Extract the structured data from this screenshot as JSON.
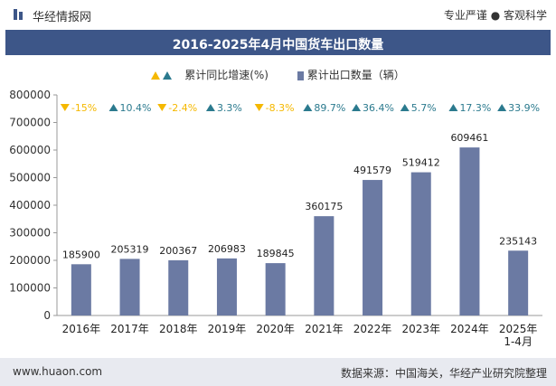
{
  "header": {
    "brand": "华经情报网",
    "tagline": "专业严谨 ● 客观科学"
  },
  "chart_data": {
    "type": "bar",
    "title": "2016-2025年4月中国货车出口数量",
    "legend": {
      "growth_label": "累计同比增速(%)",
      "volume_label": "累计出口数量（辆）"
    },
    "categories": [
      "2016年",
      "2017年",
      "2018年",
      "2019年",
      "2020年",
      "2021年",
      "2022年",
      "2023年",
      "2024年",
      "2025年 1-4月"
    ],
    "values": [
      185900,
      205319,
      200367,
      206983,
      189845,
      360175,
      491579,
      519412,
      609461,
      235143
    ],
    "growth": [
      "-15%",
      "10.4%",
      "-2.4%",
      "3.3%",
      "-8.3%",
      "89.7%",
      "36.4%",
      "5.7%",
      "17.3%",
      "33.9%"
    ],
    "growth_direction": [
      "down",
      "up",
      "down",
      "up",
      "down",
      "up",
      "up",
      "up",
      "up",
      "up"
    ],
    "ylim": [
      0,
      800000
    ],
    "yticks": [
      0,
      100000,
      200000,
      300000,
      400000,
      500000,
      600000,
      700000,
      800000
    ],
    "colors": {
      "bar": "#6b7aa3",
      "up": "#2b7a8e",
      "down": "#f5b800",
      "title_bg": "#3d5688"
    }
  },
  "footer": {
    "site": "www.huaon.com",
    "source": "数据来源：中国海关，华经产业研究院整理"
  }
}
